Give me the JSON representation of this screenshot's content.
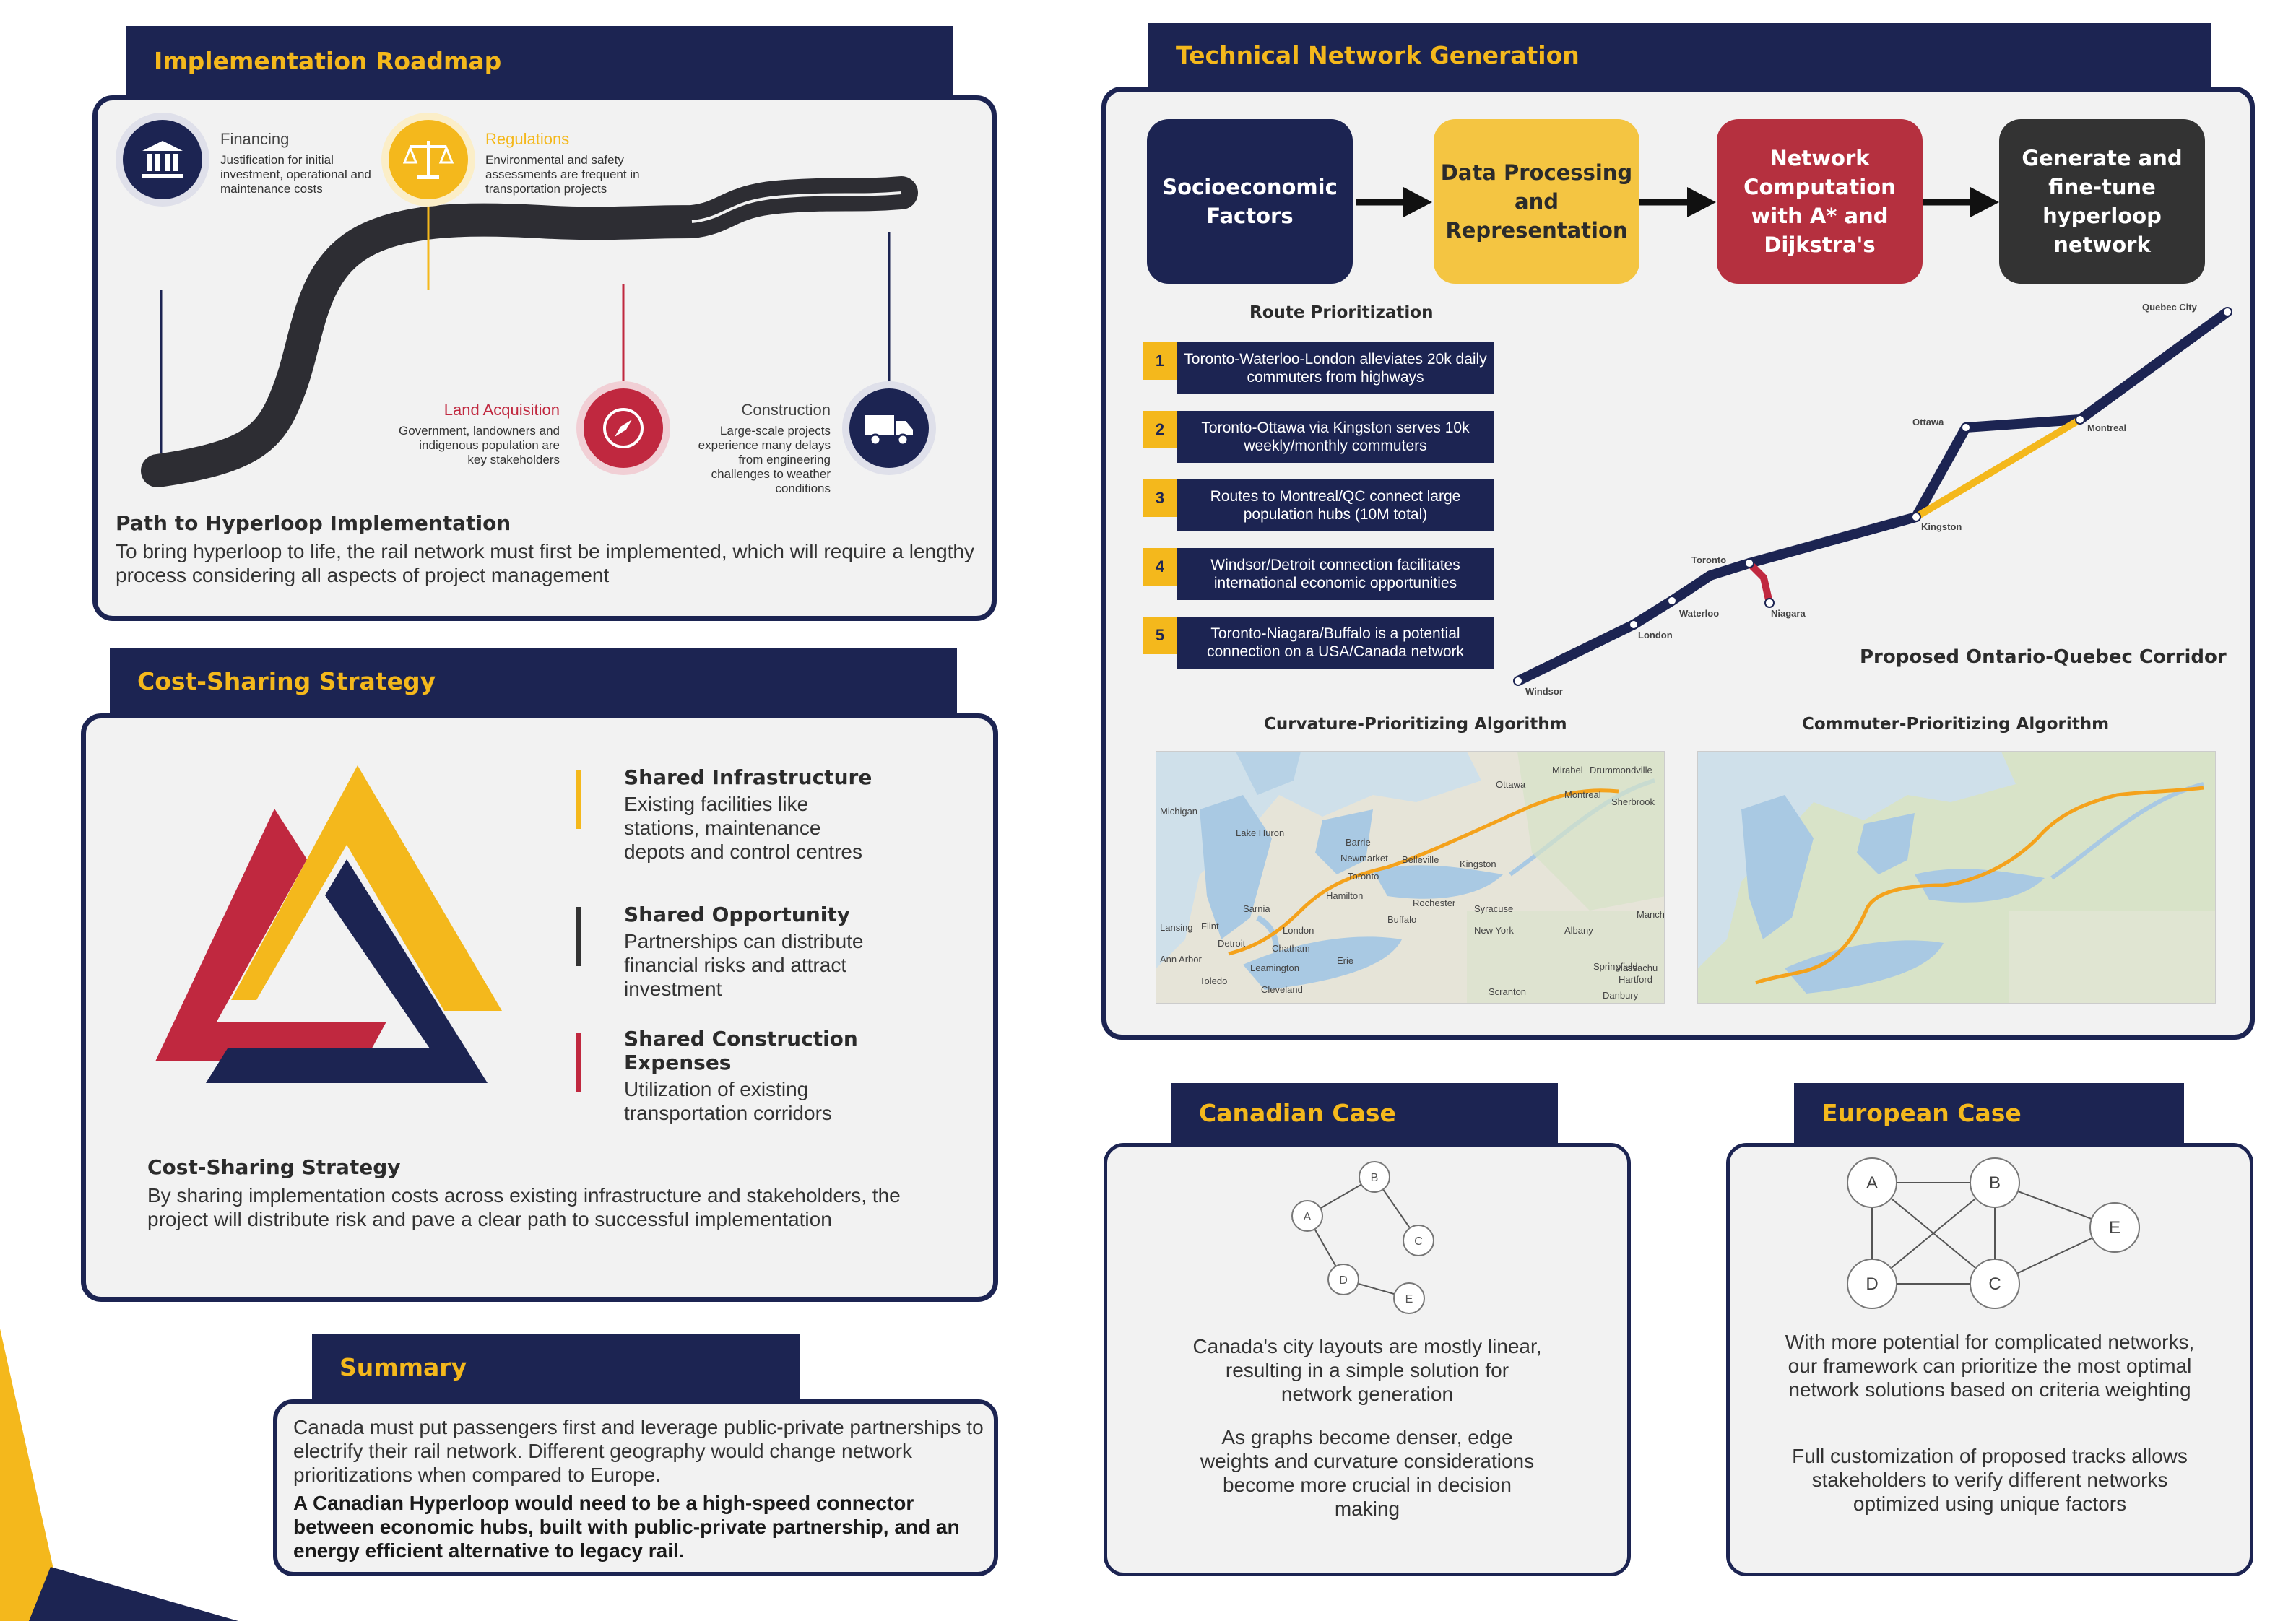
{
  "roadmap": {
    "tab_title": "Implementation Roadmap",
    "milestones": [
      {
        "title": "Financing",
        "desc": "Justification for initial investment, operational and maintenance costs",
        "color": "#1c2452",
        "icon": "bank-icon"
      },
      {
        "title": "Regulations",
        "desc": "Environmental and safety assessments are frequent in transportation projects",
        "color": "#f4b81c",
        "icon": "scales-icon"
      },
      {
        "title": "Land Acquisition",
        "desc": "Government, landowners and indigenous population are key stakeholders",
        "color": "#c0283f",
        "icon": "compass-icon"
      },
      {
        "title": "Construction",
        "desc": "Large-scale projects experience many delays from engineering challenges to weather conditions",
        "color": "#1c2452",
        "icon": "truck-icon"
      }
    ],
    "heading": "Path to Hyperloop Implementation",
    "text": "To bring hyperloop to life, the rail network must first be implemented, which will require a lengthy process considering all aspects of project management"
  },
  "cost_sharing": {
    "tab_title": "Cost-Sharing Strategy",
    "items": [
      {
        "title": "Shared Infrastructure",
        "desc": "Existing facilities like stations, maintenance depots and control centres",
        "color": "#f4b81c"
      },
      {
        "title": "Shared Opportunity",
        "desc": "Partnerships can distribute financial risks and attract investment",
        "color": "#333333"
      },
      {
        "title": "Shared Construction Expenses",
        "desc": "Utilization of existing transportation corridors",
        "color": "#c0283f"
      }
    ],
    "heading": "Cost-Sharing Strategy",
    "text": "By sharing implementation costs across existing infrastructure and stakeholders, the project will distribute risk and pave a clear path to successful implementation"
  },
  "summary": {
    "tab_title": "Summary",
    "text": "Canada must put passengers first and leverage public-private partnerships to electrify their rail network. Different geography would change network prioritizations when compared to Europe.",
    "bold_text": "A Canadian Hyperloop would need to be a high-speed connector between economic hubs, built with public-private partnership, and an energy efficient alternative to legacy rail."
  },
  "technical": {
    "tab_title": "Technical Network Generation",
    "steps": [
      {
        "label": "Socioeconomic Factors",
        "bg": "#1c2452",
        "fg": "#ffffff"
      },
      {
        "label": "Data Processing and Representation",
        "bg": "#f4c542",
        "fg": "#2b2b2b"
      },
      {
        "label": "Network Computation with A* and Dijkstra's",
        "bg": "#b5303f",
        "fg": "#ffffff"
      },
      {
        "label": "Generate and fine-tune hyperloop network",
        "bg": "#333333",
        "fg": "#ffffff"
      }
    ],
    "route_title": "Route Prioritization",
    "routes": [
      {
        "num": "1",
        "text": "Toronto-Waterloo-London alleviates 20k daily commuters from highways"
      },
      {
        "num": "2",
        "text": "Toronto-Ottawa via Kingston serves 10k weekly/monthly commuters"
      },
      {
        "num": "3",
        "text": "Routes to Montreal/QC connect large population hubs (10M total)"
      },
      {
        "num": "4",
        "text": "Windsor/Detroit connection facilitates international economic opportunities"
      },
      {
        "num": "5",
        "text": "Toronto-Niagara/Buffalo is a potential connection on a USA/Canada network"
      }
    ],
    "corridor_cities": [
      "Quebec City",
      "Montreal",
      "Ottawa",
      "Kingston",
      "Toronto",
      "Niagara",
      "Waterloo",
      "London",
      "Windsor"
    ],
    "corridor_title": "Proposed Ontario-Quebec Corridor",
    "map1_title": "Curvature-Prioritizing Algorithm",
    "map2_title": "Commuter-Prioritizing Algorithm",
    "map1_labels": [
      "Ottawa",
      "Mirabel",
      "Drummondville",
      "Montreal",
      "Sherbrook",
      "Michigan",
      "Lake Huron",
      "Barrie",
      "Newmarket",
      "Kingston",
      "Toronto",
      "Belleville",
      "Hamilton",
      "Rochester",
      "Syracuse",
      "Sarnia",
      "London",
      "Buffalo",
      "New York",
      "Albany",
      "Lansing",
      "Flint",
      "Chatham",
      "Erie",
      "Detroit",
      "Ann Arbor",
      "Leamington",
      "Toledo",
      "Cleveland",
      "Springfield",
      "Hartford",
      "Danbury",
      "Scranton",
      "Manch",
      "Massachu"
    ]
  },
  "canadian_case": {
    "tab_title": "Canadian Case",
    "nodes": [
      "A",
      "B",
      "C",
      "D",
      "E"
    ],
    "text1": "Canada's city layouts are mostly linear, resulting in a simple solution for network generation",
    "text2": "As graphs become denser, edge weights and curvature considerations become more crucial in decision making"
  },
  "european_case": {
    "tab_title": "European Case",
    "nodes": [
      "A",
      "B",
      "E",
      "D",
      "C"
    ],
    "text1": "With more potential for complicated networks, our framework can prioritize the most optimal network solutions based on criteria weighting",
    "text2": "Full customization of proposed tracks allows stakeholders to verify different networks optimized using unique factors"
  }
}
